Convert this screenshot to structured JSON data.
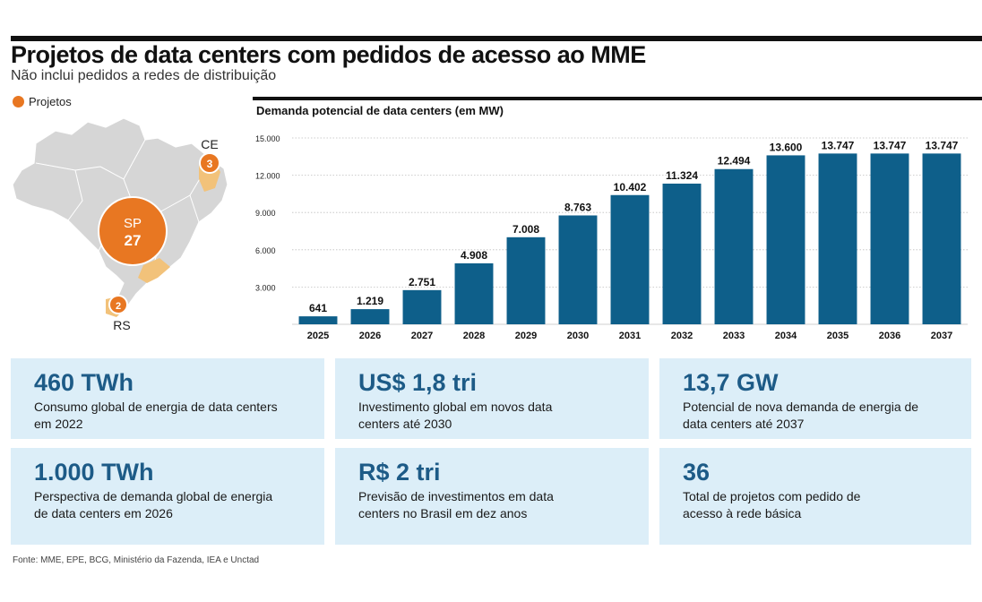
{
  "header": {
    "title": "Projetos de data centers com pedidos de acesso ao MME",
    "subtitle": "Não inclui pedidos a redes de distribuição"
  },
  "map": {
    "legend_label": "Projetos",
    "markers": [
      {
        "state": "SP",
        "count": "27"
      },
      {
        "state": "CE",
        "count": "3"
      },
      {
        "state": "RS",
        "count": "2"
      }
    ],
    "colors": {
      "land": "#d6d6d6",
      "highlight": "#f2c27a",
      "marker": "#e87722"
    }
  },
  "chart_data": {
    "type": "bar",
    "title": "Demanda potencial de data centers (em MW)",
    "categories": [
      "2025",
      "2026",
      "2027",
      "2028",
      "2029",
      "2030",
      "2031",
      "2032",
      "2033",
      "2034",
      "2035",
      "2036",
      "2037"
    ],
    "values": [
      641,
      1219,
      2751,
      4908,
      7008,
      8763,
      10402,
      11324,
      12494,
      13600,
      13747,
      13747,
      13747
    ],
    "value_labels": [
      "641",
      "1.219",
      "2.751",
      "4.908",
      "7.008",
      "8.763",
      "10.402",
      "11.324",
      "12.494",
      "13.600",
      "13.747",
      "13.747",
      "13.747"
    ],
    "yticks": [
      3000,
      6000,
      9000,
      12000,
      15000
    ],
    "ytick_labels": [
      "3.000",
      "6.000",
      "9.000",
      "12.000",
      "15.000"
    ],
    "ylim": [
      0,
      15000
    ],
    "grid": true,
    "bar_color": "#0e5f8a",
    "xlabel": "",
    "ylabel": ""
  },
  "cards": [
    {
      "value": "460 TWh",
      "desc": "Consumo global de energia de data centers\nem 2022"
    },
    {
      "value": "US$ 1,8 tri",
      "desc": "Investimento global em novos data\ncenters até 2030"
    },
    {
      "value": "13,7 GW",
      "desc": "Potencial de nova demanda de energia de\ndata centers até 2037"
    },
    {
      "value": "1.000 TWh",
      "desc": "Perspectiva de demanda global de energia\nde data centers em 2026"
    },
    {
      "value": "R$ 2 tri",
      "desc": "Previsão de investimentos em data\ncenters no Brasil em dez anos"
    },
    {
      "value": "36",
      "desc": "Total de projetos com pedido de\nacesso à rede básica"
    }
  ],
  "source": "Fonte: MME, EPE, BCG, Ministério da Fazenda, IEA e Unctad"
}
